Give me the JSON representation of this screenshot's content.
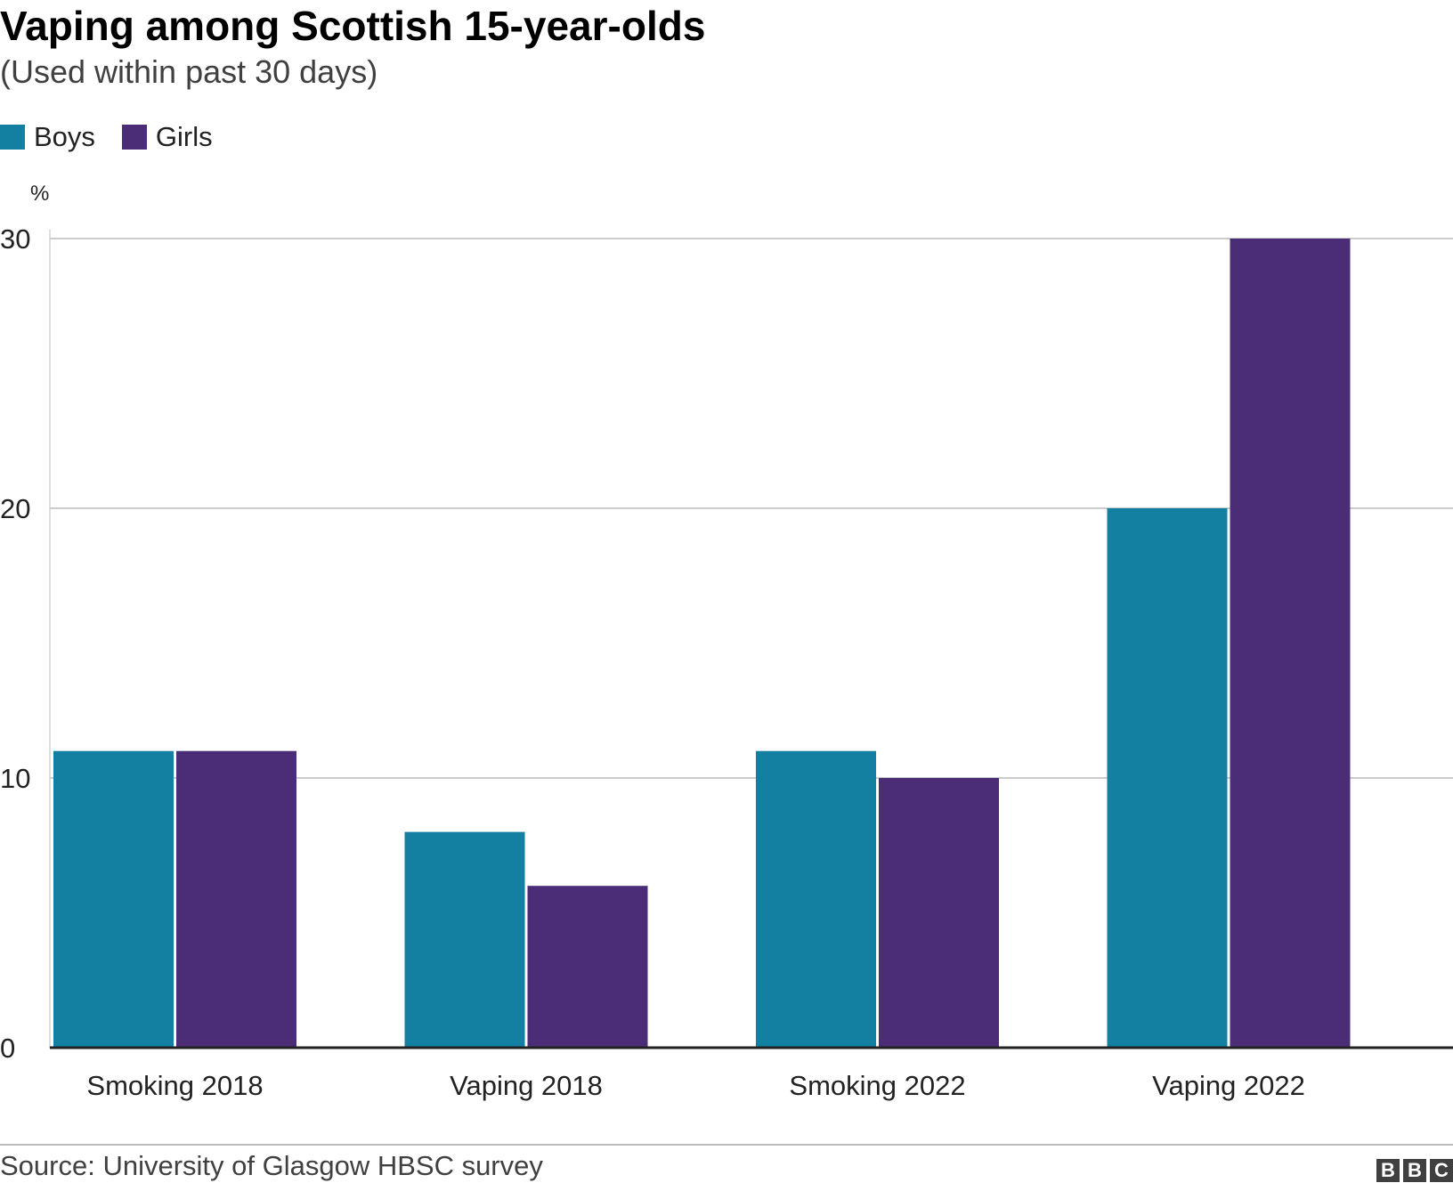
{
  "chart_data": {
    "type": "bar",
    "title": "Vaping among Scottish 15-year-olds",
    "subtitle": "(Used within past 30 days)",
    "ylabel": "%",
    "xlabel": "",
    "ylim": [
      0,
      30
    ],
    "yticks": [
      0,
      10,
      20,
      30
    ],
    "categories": [
      "Smoking 2018",
      "Vaping 2018",
      "Smoking 2022",
      "Vaping 2022"
    ],
    "series": [
      {
        "name": "Boys",
        "color": "#1380a1",
        "values": [
          11,
          8,
          11,
          20
        ]
      },
      {
        "name": "Girls",
        "color": "#4b2c77",
        "values": [
          11,
          6,
          10,
          30
        ]
      }
    ],
    "grid": true,
    "legend_position": "top-left"
  },
  "source": "Source: University of Glasgow HBSC survey",
  "logo": [
    "B",
    "B",
    "C"
  ]
}
